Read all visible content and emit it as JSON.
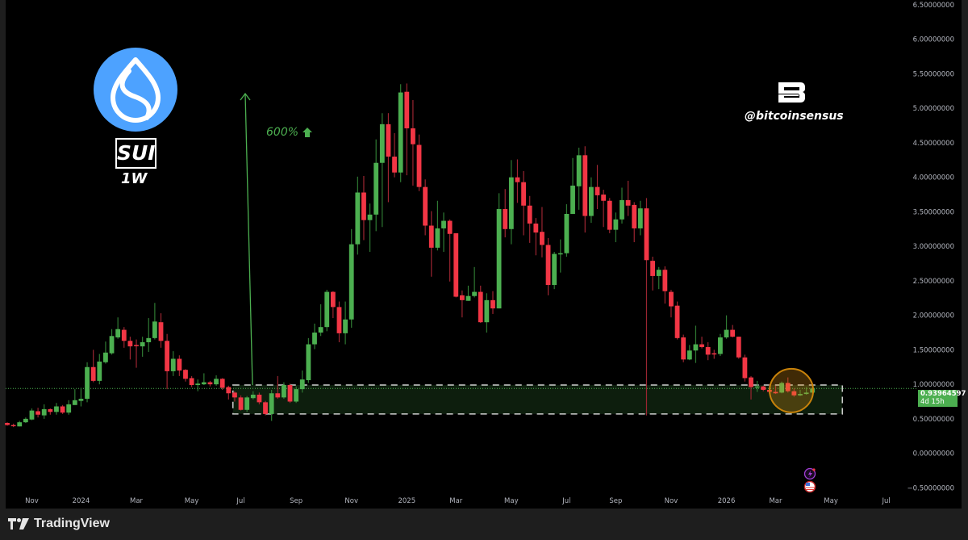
{
  "branding": {
    "symbol": "SUI",
    "timeframe": "1W",
    "gain_annotation": "600%",
    "author_handle": "@bitcoinsensus",
    "platform": "TradingView",
    "sui_logo_color": "#4da2ff"
  },
  "price_label": {
    "price": "0.93964597",
    "countdown": "4d 15h",
    "color": "#4caf50"
  },
  "icons": [
    "sui-logo-icon",
    "bitcoinsensus-logo-icon",
    "arrow-up-icon",
    "lightning-icon",
    "us-flag-icon",
    "tradingview-logo-icon"
  ],
  "chart_data": {
    "type": "candlestick",
    "interval": "weekly",
    "up_color": "#4caf50",
    "down_color": "#f23645",
    "ylim": [
      -0.8,
      6.57
    ],
    "grid": false,
    "y_ticks": [
      {
        "value": 6.5,
        "label": "6.50000000"
      },
      {
        "value": 6.0,
        "label": "6.00000000"
      },
      {
        "value": 5.5,
        "label": "5.50000000"
      },
      {
        "value": 5.0,
        "label": "5.00000000"
      },
      {
        "value": 4.5,
        "label": "4.50000000"
      },
      {
        "value": 4.0,
        "label": "4.00000000"
      },
      {
        "value": 3.5,
        "label": "3.50000000"
      },
      {
        "value": 3.0,
        "label": "3.00000000"
      },
      {
        "value": 2.5,
        "label": "2.50000000"
      },
      {
        "value": 2.0,
        "label": "2.00000000"
      },
      {
        "value": 1.5,
        "label": "1.50000000"
      },
      {
        "value": 1.0,
        "label": "1.00000000"
      },
      {
        "value": 0.5,
        "label": "0.50000000"
      },
      {
        "value": 0.0,
        "label": "0.00000000"
      },
      {
        "value": -0.5,
        "label": "−0.50000000"
      }
    ],
    "x_ticks": [
      {
        "date": "2023-11-06",
        "label": "Nov"
      },
      {
        "date": "2024-01-01",
        "label": "2024"
      },
      {
        "date": "2024-03-04",
        "label": "Mar"
      },
      {
        "date": "2024-05-06",
        "label": "May"
      },
      {
        "date": "2024-07-01",
        "label": "Jul"
      },
      {
        "date": "2024-09-02",
        "label": "Sep"
      },
      {
        "date": "2024-11-04",
        "label": "Nov"
      },
      {
        "date": "2025-01-06",
        "label": "2025"
      },
      {
        "date": "2025-03-03",
        "label": "Mar"
      },
      {
        "date": "2025-05-05",
        "label": "May"
      },
      {
        "date": "2025-07-07",
        "label": "Jul"
      },
      {
        "date": "2025-09-01",
        "label": "Sep"
      },
      {
        "date": "2025-11-03",
        "label": "Nov"
      },
      {
        "date": "2026-01-05",
        "label": "2026"
      },
      {
        "date": "2026-03-02",
        "label": "Mar"
      },
      {
        "date": "2026-05-04",
        "label": "May"
      },
      {
        "date": "2026-07-06",
        "label": "Jul"
      }
    ],
    "current_price": 0.93964597,
    "candles_columns": [
      "date",
      "open",
      "high",
      "low",
      "close"
    ],
    "candles": [
      [
        "2023-10-09",
        0.44,
        0.45,
        0.4,
        0.41
      ],
      [
        "2023-10-16",
        0.41,
        0.43,
        0.38,
        0.4
      ],
      [
        "2023-10-23",
        0.39,
        0.47,
        0.39,
        0.45
      ],
      [
        "2023-10-30",
        0.45,
        0.52,
        0.44,
        0.5
      ],
      [
        "2023-11-06",
        0.49,
        0.65,
        0.48,
        0.62
      ],
      [
        "2023-11-13",
        0.61,
        0.66,
        0.52,
        0.56
      ],
      [
        "2023-11-20",
        0.55,
        0.71,
        0.5,
        0.64
      ],
      [
        "2023-11-27",
        0.64,
        0.65,
        0.56,
        0.6
      ],
      [
        "2023-12-04",
        0.6,
        0.73,
        0.56,
        0.68
      ],
      [
        "2023-12-11",
        0.68,
        0.7,
        0.57,
        0.59
      ],
      [
        "2023-12-18",
        0.59,
        0.77,
        0.56,
        0.71
      ],
      [
        "2023-12-25",
        0.7,
        0.93,
        0.7,
        0.77
      ],
      [
        "2024-01-01",
        0.76,
        0.95,
        0.68,
        0.79
      ],
      [
        "2024-01-08",
        0.79,
        1.32,
        0.74,
        1.25
      ],
      [
        "2024-01-15",
        1.25,
        1.5,
        1.03,
        1.05
      ],
      [
        "2024-01-22",
        1.05,
        1.44,
        1.0,
        1.33
      ],
      [
        "2024-01-29",
        1.32,
        1.62,
        1.3,
        1.46
      ],
      [
        "2024-02-05",
        1.45,
        1.8,
        1.43,
        1.7
      ],
      [
        "2024-02-12",
        1.68,
        1.97,
        1.66,
        1.8
      ],
      [
        "2024-02-19",
        1.79,
        1.83,
        1.53,
        1.63
      ],
      [
        "2024-02-26",
        1.63,
        1.69,
        1.36,
        1.55
      ],
      [
        "2024-03-04",
        1.57,
        1.65,
        1.24,
        1.56
      ],
      [
        "2024-03-11",
        1.55,
        1.69,
        1.4,
        1.61
      ],
      [
        "2024-03-18",
        1.61,
        1.96,
        1.47,
        1.67
      ],
      [
        "2024-03-25",
        1.67,
        2.18,
        1.65,
        1.91
      ],
      [
        "2024-04-01",
        1.9,
        2.03,
        1.53,
        1.63
      ],
      [
        "2024-04-08",
        1.63,
        1.73,
        0.93,
        1.19
      ],
      [
        "2024-04-15",
        1.19,
        1.48,
        1.12,
        1.37
      ],
      [
        "2024-04-22",
        1.37,
        1.42,
        1.12,
        1.2
      ],
      [
        "2024-04-29",
        1.21,
        1.22,
        1.04,
        1.08
      ],
      [
        "2024-05-06",
        1.09,
        1.12,
        0.96,
        0.99
      ],
      [
        "2024-05-13",
        0.99,
        1.07,
        0.9,
        1.01
      ],
      [
        "2024-05-20",
        1.0,
        1.16,
        0.99,
        1.03
      ],
      [
        "2024-05-27",
        1.03,
        1.05,
        0.97,
        1.0
      ],
      [
        "2024-06-03",
        1.0,
        1.13,
        0.98,
        1.08
      ],
      [
        "2024-06-10",
        1.08,
        1.09,
        0.92,
        0.95
      ],
      [
        "2024-06-17",
        0.96,
        0.98,
        0.78,
        0.87
      ],
      [
        "2024-06-24",
        0.88,
        0.9,
        0.75,
        0.81
      ],
      [
        "2024-07-01",
        0.81,
        0.84,
        0.62,
        0.63
      ],
      [
        "2024-07-08",
        0.63,
        0.83,
        0.6,
        0.81
      ],
      [
        "2024-07-15",
        0.8,
        0.9,
        0.78,
        0.85
      ],
      [
        "2024-07-22",
        0.85,
        0.88,
        0.71,
        0.74
      ],
      [
        "2024-07-29",
        0.74,
        0.76,
        0.55,
        0.57
      ],
      [
        "2024-08-05",
        0.57,
        0.92,
        0.47,
        0.87
      ],
      [
        "2024-08-12",
        0.87,
        1.12,
        0.79,
        0.81
      ],
      [
        "2024-08-19",
        0.81,
        1.03,
        0.79,
        0.99
      ],
      [
        "2024-08-26",
        0.99,
        1.01,
        0.73,
        0.75
      ],
      [
        "2024-09-02",
        0.75,
        0.97,
        0.73,
        0.93
      ],
      [
        "2024-09-09",
        0.93,
        1.2,
        0.88,
        1.07
      ],
      [
        "2024-09-16",
        1.06,
        1.67,
        1.02,
        1.58
      ],
      [
        "2024-09-23",
        1.58,
        1.88,
        1.51,
        1.75
      ],
      [
        "2024-09-30",
        1.75,
        2.16,
        1.7,
        1.83
      ],
      [
        "2024-10-07",
        1.83,
        2.37,
        1.77,
        2.34
      ],
      [
        "2024-10-14",
        2.34,
        2.35,
        1.96,
        2.12
      ],
      [
        "2024-10-21",
        2.12,
        2.2,
        1.61,
        1.74
      ],
      [
        "2024-10-28",
        1.74,
        2.2,
        1.58,
        1.94
      ],
      [
        "2024-11-04",
        1.94,
        3.25,
        1.82,
        3.03
      ],
      [
        "2024-11-11",
        3.03,
        4.01,
        2.88,
        3.78
      ],
      [
        "2024-11-18",
        3.78,
        4.02,
        3.09,
        3.38
      ],
      [
        "2024-11-25",
        3.38,
        3.62,
        2.92,
        3.46
      ],
      [
        "2024-12-02",
        3.46,
        4.55,
        3.22,
        4.21
      ],
      [
        "2024-12-09",
        4.21,
        4.93,
        3.28,
        4.77
      ],
      [
        "2024-12-16",
        4.77,
        4.93,
        3.64,
        4.3
      ],
      [
        "2024-12-23",
        4.3,
        4.64,
        4.0,
        4.07
      ],
      [
        "2024-12-30",
        4.07,
        5.35,
        3.93,
        5.23
      ],
      [
        "2025-01-06",
        5.24,
        5.36,
        4.03,
        4.71
      ],
      [
        "2025-01-13",
        4.71,
        5.12,
        3.88,
        4.48
      ],
      [
        "2025-01-20",
        4.47,
        4.62,
        3.8,
        3.86
      ],
      [
        "2025-01-27",
        3.86,
        3.97,
        3.16,
        3.3
      ],
      [
        "2025-02-03",
        3.3,
        3.51,
        2.56,
        2.98
      ],
      [
        "2025-02-10",
        2.98,
        3.66,
        2.94,
        3.26
      ],
      [
        "2025-02-17",
        3.26,
        3.49,
        2.92,
        3.37
      ],
      [
        "2025-02-24",
        3.37,
        3.39,
        2.49,
        3.18
      ],
      [
        "2025-03-03",
        3.19,
        3.19,
        2.26,
        2.27
      ],
      [
        "2025-03-10",
        2.29,
        2.36,
        1.97,
        2.22
      ],
      [
        "2025-03-17",
        2.21,
        2.43,
        2.21,
        2.28
      ],
      [
        "2025-03-24",
        2.28,
        2.7,
        2.26,
        2.34
      ],
      [
        "2025-03-31",
        2.34,
        2.43,
        1.89,
        1.9
      ],
      [
        "2025-04-07",
        1.9,
        2.32,
        1.75,
        2.22
      ],
      [
        "2025-04-14",
        2.22,
        2.35,
        2.02,
        2.1
      ],
      [
        "2025-04-21",
        2.1,
        3.77,
        2.1,
        3.54
      ],
      [
        "2025-04-28",
        3.54,
        3.83,
        3.13,
        3.25
      ],
      [
        "2025-05-05",
        3.25,
        4.25,
        3.03,
        4.0
      ],
      [
        "2025-05-12",
        4.0,
        4.26,
        3.63,
        3.93
      ],
      [
        "2025-05-19",
        3.93,
        4.09,
        3.16,
        3.59
      ],
      [
        "2025-05-26",
        3.59,
        3.73,
        3.05,
        3.33
      ],
      [
        "2025-06-02",
        3.33,
        3.41,
        2.87,
        3.2
      ],
      [
        "2025-06-09",
        3.21,
        3.57,
        2.84,
        3.02
      ],
      [
        "2025-06-16",
        3.02,
        3.12,
        2.29,
        2.44
      ],
      [
        "2025-06-23",
        2.44,
        2.92,
        2.38,
        2.89
      ],
      [
        "2025-06-30",
        2.89,
        3.1,
        2.62,
        2.9
      ],
      [
        "2025-07-07",
        2.9,
        3.61,
        2.85,
        3.47
      ],
      [
        "2025-07-14",
        3.47,
        4.28,
        3.47,
        3.88
      ],
      [
        "2025-07-21",
        3.87,
        4.43,
        3.53,
        4.32
      ],
      [
        "2025-07-28",
        4.32,
        4.45,
        3.2,
        3.44
      ],
      [
        "2025-08-04",
        3.44,
        4.0,
        3.34,
        3.86
      ],
      [
        "2025-08-11",
        3.86,
        4.18,
        3.54,
        3.74
      ],
      [
        "2025-08-18",
        3.75,
        3.82,
        3.28,
        3.66
      ],
      [
        "2025-08-25",
        3.66,
        3.7,
        3.19,
        3.24
      ],
      [
        "2025-09-01",
        3.24,
        3.49,
        3.06,
        3.39
      ],
      [
        "2025-09-08",
        3.39,
        3.85,
        3.33,
        3.67
      ],
      [
        "2025-09-15",
        3.67,
        3.95,
        3.44,
        3.59
      ],
      [
        "2025-09-22",
        3.6,
        3.64,
        3.06,
        3.26
      ],
      [
        "2025-09-29",
        3.26,
        3.66,
        3.16,
        3.55
      ],
      [
        "2025-10-06",
        3.55,
        3.7,
        0.55,
        2.8
      ],
      [
        "2025-10-13",
        2.79,
        2.85,
        2.36,
        2.57
      ],
      [
        "2025-10-20",
        2.57,
        2.7,
        2.38,
        2.66
      ],
      [
        "2025-10-27",
        2.66,
        2.71,
        2.17,
        2.35
      ],
      [
        "2025-11-03",
        2.34,
        2.37,
        1.97,
        2.13
      ],
      [
        "2025-11-10",
        2.14,
        2.2,
        1.65,
        1.67
      ],
      [
        "2025-11-17",
        1.68,
        1.72,
        1.32,
        1.36
      ],
      [
        "2025-11-24",
        1.36,
        1.57,
        1.35,
        1.49
      ],
      [
        "2025-12-01",
        1.49,
        1.85,
        1.31,
        1.58
      ],
      [
        "2025-12-08",
        1.58,
        1.69,
        1.52,
        1.54
      ],
      [
        "2025-12-15",
        1.54,
        1.61,
        1.35,
        1.43
      ],
      [
        "2025-12-22",
        1.45,
        1.5,
        1.37,
        1.44
      ],
      [
        "2025-12-29",
        1.44,
        1.73,
        1.41,
        1.68
      ],
      [
        "2026-01-05",
        1.68,
        2.0,
        1.66,
        1.79
      ],
      [
        "2026-01-12",
        1.79,
        1.86,
        1.68,
        1.69
      ],
      [
        "2026-01-19",
        1.69,
        1.69,
        1.37,
        1.39
      ],
      [
        "2026-01-26",
        1.39,
        1.43,
        1.04,
        1.09
      ],
      [
        "2026-02-02",
        1.1,
        1.12,
        0.78,
        0.96
      ],
      [
        "2026-02-09",
        0.96,
        1.05,
        0.89,
        0.97
      ],
      [
        "2026-02-16",
        0.97,
        0.98,
        0.9,
        0.92
      ],
      [
        "2026-02-23",
        0.92,
        1.0,
        0.86,
        0.89
      ],
      [
        "2026-03-02",
        0.89,
        0.98,
        0.86,
        0.87
      ],
      [
        "2026-03-09",
        0.88,
        1.04,
        0.87,
        1.02
      ],
      [
        "2026-03-16",
        1.02,
        1.1,
        0.88,
        0.9
      ],
      [
        "2026-03-23",
        0.9,
        0.94,
        0.82,
        0.84
      ],
      [
        "2026-03-30",
        0.84,
        0.92,
        0.83,
        0.86
      ],
      [
        "2026-04-06",
        0.86,
        0.96,
        0.85,
        0.88
      ],
      [
        "2026-04-13",
        0.88,
        0.95,
        0.87,
        0.9396
      ]
    ]
  }
}
